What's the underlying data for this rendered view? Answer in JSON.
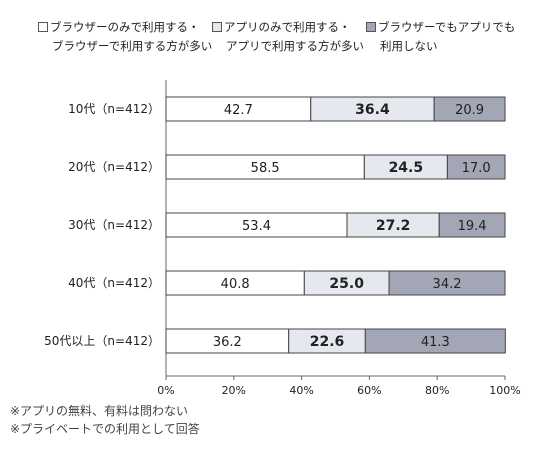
{
  "legend": [
    {
      "line1": "ブラウザーのみで利用する・",
      "line2": "ブラウザーで利用する方が多い",
      "color": "#ffffff"
    },
    {
      "line1": "アプリのみで利用する・",
      "line2": "アプリで利用する方が多い",
      "color": "#e6e8ef"
    },
    {
      "line1": "ブラウザーでもアプリでも",
      "line2": "利用しない",
      "color": "#a3a7b5"
    }
  ],
  "notes": [
    "※アプリの無料、有料は問わない",
    "※プライベートでの利用として回答"
  ],
  "chart_data": {
    "type": "bar",
    "orientation": "horizontal",
    "stacked": true,
    "categories": [
      "10代（n=412）",
      "20代（n=412）",
      "30代（n=412）",
      "40代（n=412）",
      "50代以上（n=412）"
    ],
    "series": [
      {
        "name": "ブラウザーのみで利用する・ブラウザーで利用する方が多い",
        "values": [
          42.7,
          58.5,
          53.4,
          40.8,
          36.2
        ],
        "labels": [
          "42.7",
          "58.5",
          "53.4",
          "40.8",
          "36.2"
        ],
        "color": "#ffffff",
        "bold": false
      },
      {
        "name": "アプリのみで利用する・アプリで利用する方が多い",
        "values": [
          36.4,
          24.5,
          27.2,
          25.0,
          22.6
        ],
        "labels": [
          "36.4",
          "24.5",
          "27.2",
          "25.0",
          "22.6"
        ],
        "color": "#e6e8ef",
        "bold": true
      },
      {
        "name": "ブラウザーでもアプリでも利用しない",
        "values": [
          20.9,
          17.0,
          19.4,
          34.2,
          41.3
        ],
        "labels": [
          "20.9",
          "17.0",
          "19.4",
          "34.2",
          "41.3"
        ],
        "color": "#a3a7b5",
        "bold": false
      }
    ],
    "xlim": [
      0,
      100
    ],
    "xticks": [
      "0%",
      "20%",
      "40%",
      "60%",
      "80%",
      "100%"
    ],
    "grid": false,
    "legend_position": "top"
  }
}
